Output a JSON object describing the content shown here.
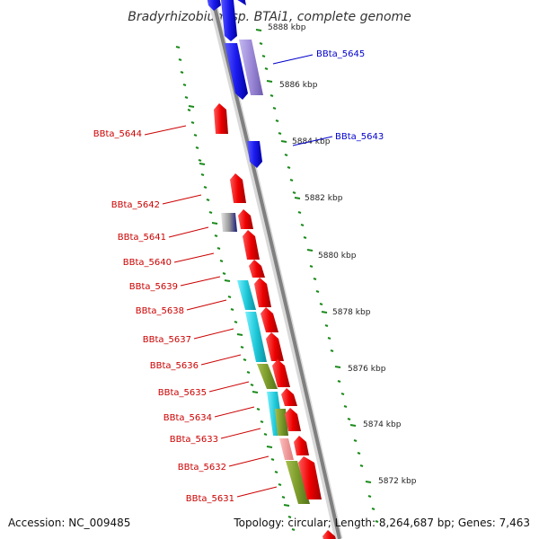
{
  "title": "Bradyrhizobium sp. BTAi1, complete genome",
  "footer": {
    "accession": "Accession: NC_009485",
    "summary": "Topology: circular; Length: 8,264,687 bp; Genes: 7,463"
  },
  "ticks": [
    "5888 kbp",
    "5886 kbp",
    "5884 kbp",
    "5882 kbp",
    "5880 kbp",
    "5878 kbp",
    "5876 kbp",
    "5874 kbp",
    "5872 kbp"
  ],
  "labels": {
    "right": [
      "BBta_5645",
      "BBta_5643"
    ],
    "left": [
      "BBta_5644",
      "BBta_5642",
      "BBta_5641",
      "BBta_5640",
      "BBta_5639",
      "BBta_5638",
      "BBta_5637",
      "BBta_5636",
      "BBta_5635",
      "BBta_5634",
      "BBta_5633",
      "BBta_5632",
      "BBta_5631"
    ]
  },
  "colors": {
    "forward_gene": "#ee0000",
    "reverse_gene": "#1a1aee",
    "right_label": "#0000cc",
    "left_label": "#cc0000",
    "backbone": "#888888",
    "scale_dashes": "#1a8a1a",
    "cds_cyan": "#1ec8d8",
    "cds_olive": "#7a9a2a",
    "cds_lavender": "#9d8ad8"
  }
}
